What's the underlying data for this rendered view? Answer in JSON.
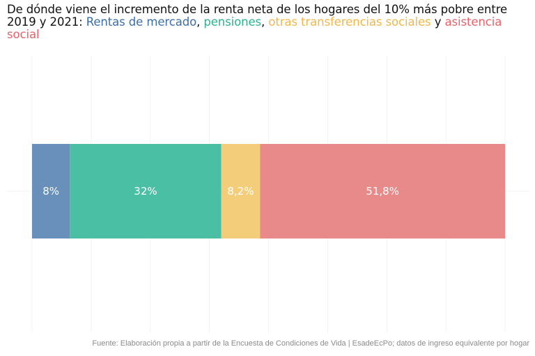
{
  "title": {
    "main": "De dónde viene el incremento de la renta neta de los hogares del 10% más pobre entre 2019 y 2021: ",
    "sep1": ", ",
    "sep2": ", ",
    "sep3": " y "
  },
  "source": "Fuente: Elaboración propia a partir de la Encuesta de Condiciones de Vida | EsadeEcPo; datos de ingreso equivalente por hogar",
  "colors": {
    "rentas": "#6890bb",
    "pensiones": "#4bbfa3",
    "otras": "#f4cd7b",
    "asistencia": "#e88a89",
    "rentas_text": "#3d6ea8",
    "pensiones_text": "#2fb08f",
    "otras_text": "#f0b84b",
    "asistencia_text": "#e5636a"
  },
  "chart_data": {
    "type": "bar",
    "orientation": "horizontal",
    "stacked": true,
    "categories": [
      ""
    ],
    "xlim": [
      0,
      100
    ],
    "grid": true,
    "legend": "in-title",
    "series": [
      {
        "name": "Rentas de mercado",
        "values": [
          8
        ],
        "label": "8%"
      },
      {
        "name": "pensiones",
        "values": [
          32
        ],
        "label": "32%"
      },
      {
        "name": "otras transferencias sociales",
        "values": [
          8.2
        ],
        "label": "8,2%"
      },
      {
        "name": "asistencia social",
        "values": [
          51.8
        ],
        "label": "51,8%"
      }
    ]
  }
}
